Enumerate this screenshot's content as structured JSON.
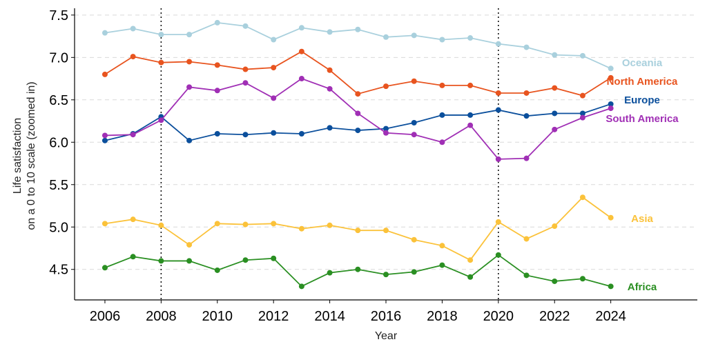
{
  "chart_data": {
    "type": "line",
    "title": "",
    "xlabel": "Year",
    "ylabel": [
      "Life satisfaction",
      "on a 0 to 10 scale (zoomed in)"
    ],
    "xlim": [
      2004.92,
      2027.08
    ],
    "ylim": [
      4.14,
      7.58
    ],
    "x_ticks": [
      2006,
      2008,
      2010,
      2012,
      2014,
      2016,
      2018,
      2020,
      2022,
      2024
    ],
    "y_ticks": [
      4.5,
      5.0,
      5.5,
      6.0,
      6.5,
      7.0,
      7.5
    ],
    "y_tick_labels": [
      "4.5",
      "5.0",
      "5.5",
      "6.0",
      "6.5",
      "7.0",
      "7.5"
    ],
    "grid": "horizontal dashed",
    "reference_lines_x": [
      2008,
      2020
    ],
    "legend": "direct labels at right",
    "x": [
      2006,
      2007,
      2008,
      2009,
      2010,
      2011,
      2012,
      2013,
      2014,
      2015,
      2016,
      2017,
      2018,
      2019,
      2020,
      2021,
      2022,
      2023,
      2024
    ],
    "series": [
      {
        "name": "Oceania",
        "color": "#a9d0dd",
        "values": [
          7.29,
          7.34,
          7.27,
          7.27,
          7.41,
          7.37,
          7.21,
          7.35,
          7.3,
          7.33,
          7.24,
          7.26,
          7.21,
          7.23,
          7.16,
          7.12,
          7.03,
          7.02,
          6.87
        ]
      },
      {
        "name": "North America",
        "color": "#e8541f",
        "values": [
          6.8,
          7.01,
          6.94,
          6.95,
          6.91,
          6.86,
          6.88,
          7.07,
          6.85,
          6.57,
          6.66,
          6.72,
          6.67,
          6.67,
          6.58,
          6.58,
          6.64,
          6.55,
          6.76
        ]
      },
      {
        "name": "Europe",
        "color": "#0b4f9c",
        "values": [
          6.02,
          6.1,
          6.3,
          6.02,
          6.1,
          6.09,
          6.11,
          6.1,
          6.17,
          6.14,
          6.16,
          6.23,
          6.32,
          6.32,
          6.38,
          6.31,
          6.34,
          6.34,
          6.45
        ]
      },
      {
        "name": "South America",
        "color": "#a02fb5",
        "values": [
          6.08,
          6.09,
          6.26,
          6.65,
          6.61,
          6.7,
          6.52,
          6.75,
          6.63,
          6.34,
          6.11,
          6.09,
          6.0,
          6.2,
          5.8,
          5.81,
          6.15,
          6.29,
          6.4
        ]
      },
      {
        "name": "Asia",
        "color": "#fbc23a",
        "values": [
          5.04,
          5.09,
          5.02,
          4.79,
          5.04,
          5.03,
          5.04,
          4.98,
          5.02,
          4.96,
          4.96,
          4.85,
          4.78,
          4.61,
          5.06,
          4.86,
          5.01,
          5.35,
          5.11
        ]
      },
      {
        "name": "Africa",
        "color": "#2a8f22",
        "values": [
          4.52,
          4.65,
          4.6,
          4.6,
          4.49,
          4.61,
          4.63,
          4.3,
          4.46,
          4.5,
          4.44,
          4.47,
          4.55,
          4.41,
          4.67,
          4.43,
          4.36,
          4.39,
          4.3
        ]
      }
    ]
  }
}
